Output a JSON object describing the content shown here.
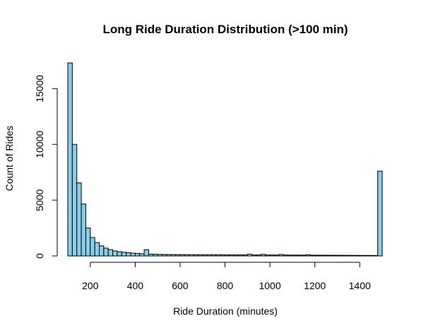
{
  "chart_data": {
    "type": "bar",
    "title": "Long Ride Duration Distribution (>100 min)",
    "xlabel": "Ride Duration (minutes)",
    "ylabel": "Count of Rides",
    "xlim": [
      100,
      1500
    ],
    "ylim": [
      0,
      17300
    ],
    "x_ticks": [
      200,
      400,
      600,
      800,
      1000,
      1200,
      1400
    ],
    "y_ticks": [
      0,
      5000,
      10000,
      15000
    ],
    "bin_width": 20,
    "bin_start": 100,
    "values": [
      17300,
      10000,
      6550,
      4650,
      2500,
      1650,
      1200,
      900,
      700,
      570,
      450,
      380,
      330,
      290,
      250,
      230,
      200,
      560,
      160,
      150,
      140,
      135,
      130,
      125,
      122,
      120,
      118,
      116,
      114,
      112,
      110,
      108,
      106,
      104,
      102,
      100,
      98,
      96,
      94,
      92,
      150,
      90,
      88,
      140,
      86,
      84,
      82,
      130,
      80,
      78,
      76,
      74,
      72,
      110,
      70,
      68,
      66,
      64,
      62,
      60,
      58,
      56,
      54,
      52,
      50,
      48,
      46,
      44,
      42,
      7600
    ],
    "bar_color": "#87CEEB",
    "grid": false,
    "legend": "none"
  }
}
